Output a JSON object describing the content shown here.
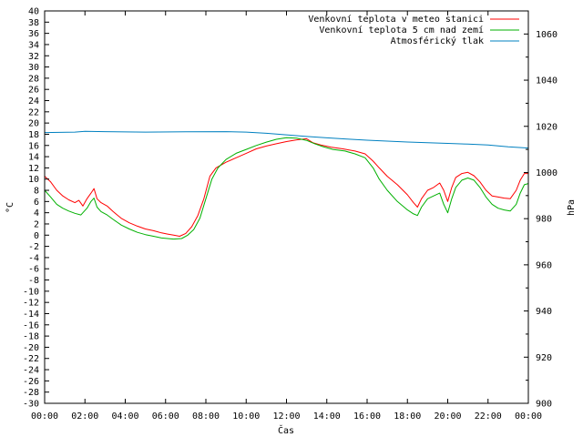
{
  "chart_data": {
    "type": "line",
    "xlabel": "Čas",
    "ylabel_left": "°C",
    "ylabel_right": "hPa",
    "ylim_left": [
      -30,
      40
    ],
    "ylim_right": [
      900,
      1070
    ],
    "xlim_hours": [
      0,
      24
    ],
    "grid": false,
    "legend_position": "top-right",
    "x_ticks": [
      "00:00",
      "02:00",
      "04:00",
      "06:00",
      "08:00",
      "10:00",
      "12:00",
      "14:00",
      "16:00",
      "18:00",
      "20:00",
      "22:00",
      "00:00"
    ],
    "y_left_ticks": [
      40,
      38,
      36,
      34,
      32,
      30,
      28,
      26,
      24,
      22,
      20,
      18,
      16,
      14,
      12,
      10,
      8,
      6,
      4,
      2,
      0,
      -2,
      -4,
      -6,
      -8,
      -10,
      -12,
      -14,
      -16,
      -18,
      -20,
      -22,
      -24,
      -26,
      -28,
      -30
    ],
    "y_right_ticks": [
      1060,
      1040,
      1020,
      1000,
      980,
      960,
      940,
      920,
      900
    ],
    "series": [
      {
        "name": "Venkovní teplota v meteo stanici",
        "color": "#ff0000",
        "axis": "left",
        "points": [
          [
            0,
            10.5
          ],
          [
            0.3,
            9.5
          ],
          [
            0.6,
            8
          ],
          [
            0.9,
            7
          ],
          [
            1.2,
            6.3
          ],
          [
            1.5,
            5.8
          ],
          [
            1.7,
            6.2
          ],
          [
            1.9,
            5.2
          ],
          [
            2.1,
            6.5
          ],
          [
            2.3,
            7.5
          ],
          [
            2.45,
            8.3
          ],
          [
            2.6,
            6.5
          ],
          [
            2.8,
            5.8
          ],
          [
            3.1,
            5.2
          ],
          [
            3.4,
            4.2
          ],
          [
            3.8,
            3
          ],
          [
            4.2,
            2.2
          ],
          [
            4.6,
            1.6
          ],
          [
            5.0,
            1.1
          ],
          [
            5.4,
            0.8
          ],
          [
            5.8,
            0.4
          ],
          [
            6.1,
            0.2
          ],
          [
            6.4,
            0
          ],
          [
            6.7,
            -0.2
          ],
          [
            7.0,
            0.3
          ],
          [
            7.3,
            1.5
          ],
          [
            7.6,
            3.5
          ],
          [
            7.9,
            6.5
          ],
          [
            8.2,
            10.5
          ],
          [
            8.5,
            12
          ],
          [
            9.0,
            13
          ],
          [
            9.5,
            13.8
          ],
          [
            10.0,
            14.6
          ],
          [
            10.5,
            15.4
          ],
          [
            11.0,
            15.9
          ],
          [
            11.5,
            16.3
          ],
          [
            12.0,
            16.7
          ],
          [
            12.5,
            17.0
          ],
          [
            13.0,
            17.2
          ],
          [
            13.3,
            16.5
          ],
          [
            13.7,
            16.1
          ],
          [
            14.2,
            15.7
          ],
          [
            14.8,
            15.4
          ],
          [
            15.4,
            15.0
          ],
          [
            15.9,
            14.5
          ],
          [
            16.3,
            13.2
          ],
          [
            16.6,
            12.0
          ],
          [
            17.0,
            10.5
          ],
          [
            17.5,
            9.0
          ],
          [
            18.0,
            7.2
          ],
          [
            18.3,
            5.8
          ],
          [
            18.5,
            5.0
          ],
          [
            18.7,
            6.5
          ],
          [
            19.0,
            8.0
          ],
          [
            19.3,
            8.5
          ],
          [
            19.6,
            9.3
          ],
          [
            19.8,
            8.0
          ],
          [
            20.0,
            6.0
          ],
          [
            20.2,
            8.5
          ],
          [
            20.4,
            10.3
          ],
          [
            20.7,
            11.0
          ],
          [
            21.0,
            11.2
          ],
          [
            21.3,
            10.6
          ],
          [
            21.6,
            9.5
          ],
          [
            21.9,
            8.0
          ],
          [
            22.2,
            7.0
          ],
          [
            22.5,
            6.8
          ],
          [
            22.8,
            6.6
          ],
          [
            23.1,
            6.5
          ],
          [
            23.4,
            8.0
          ],
          [
            23.6,
            9.8
          ],
          [
            23.8,
            11.0
          ],
          [
            24.0,
            11.0
          ]
        ]
      },
      {
        "name": "Venkovní teplota 5 cm nad zemí",
        "color": "#00b000",
        "axis": "left",
        "points": [
          [
            0,
            8.0
          ],
          [
            0.3,
            6.8
          ],
          [
            0.6,
            5.5
          ],
          [
            0.9,
            4.8
          ],
          [
            1.2,
            4.3
          ],
          [
            1.5,
            3.9
          ],
          [
            1.8,
            3.6
          ],
          [
            2.1,
            4.8
          ],
          [
            2.3,
            6.0
          ],
          [
            2.45,
            6.6
          ],
          [
            2.6,
            5.0
          ],
          [
            2.8,
            4.2
          ],
          [
            3.1,
            3.6
          ],
          [
            3.4,
            2.8
          ],
          [
            3.8,
            1.8
          ],
          [
            4.2,
            1.1
          ],
          [
            4.6,
            0.5
          ],
          [
            5.0,
            0.1
          ],
          [
            5.4,
            -0.2
          ],
          [
            5.8,
            -0.5
          ],
          [
            6.1,
            -0.6
          ],
          [
            6.4,
            -0.7
          ],
          [
            6.8,
            -0.6
          ],
          [
            7.1,
            0.0
          ],
          [
            7.4,
            1.0
          ],
          [
            7.7,
            3.0
          ],
          [
            8.0,
            6.5
          ],
          [
            8.3,
            10.0
          ],
          [
            8.6,
            12.0
          ],
          [
            9.0,
            13.5
          ],
          [
            9.5,
            14.6
          ],
          [
            10.0,
            15.3
          ],
          [
            10.5,
            16.0
          ],
          [
            11.0,
            16.6
          ],
          [
            11.5,
            17.1
          ],
          [
            12.0,
            17.4
          ],
          [
            12.5,
            17.3
          ],
          [
            13.0,
            16.9
          ],
          [
            13.4,
            16.3
          ],
          [
            13.8,
            15.8
          ],
          [
            14.3,
            15.3
          ],
          [
            14.9,
            15.0
          ],
          [
            15.4,
            14.5
          ],
          [
            15.9,
            13.8
          ],
          [
            16.3,
            12.0
          ],
          [
            16.6,
            10.0
          ],
          [
            17.0,
            8.0
          ],
          [
            17.5,
            6.0
          ],
          [
            18.0,
            4.5
          ],
          [
            18.3,
            3.8
          ],
          [
            18.5,
            3.5
          ],
          [
            18.7,
            5.0
          ],
          [
            19.0,
            6.5
          ],
          [
            19.3,
            7.0
          ],
          [
            19.6,
            7.5
          ],
          [
            19.8,
            5.5
          ],
          [
            20.0,
            4.0
          ],
          [
            20.2,
            6.5
          ],
          [
            20.4,
            8.5
          ],
          [
            20.7,
            9.8
          ],
          [
            21.0,
            10.2
          ],
          [
            21.3,
            9.8
          ],
          [
            21.6,
            8.5
          ],
          [
            21.9,
            6.8
          ],
          [
            22.2,
            5.5
          ],
          [
            22.5,
            4.8
          ],
          [
            22.8,
            4.5
          ],
          [
            23.1,
            4.3
          ],
          [
            23.4,
            5.5
          ],
          [
            23.6,
            7.5
          ],
          [
            23.8,
            9.0
          ],
          [
            24.0,
            9.2
          ]
        ]
      },
      {
        "name": "Atmosférický tlak",
        "color": "#0080c0",
        "axis": "right",
        "points": [
          [
            0,
            1017.3
          ],
          [
            1.5,
            1017.5
          ],
          [
            2.0,
            1017.8
          ],
          [
            3.0,
            1017.7
          ],
          [
            5.0,
            1017.5
          ],
          [
            7.0,
            1017.6
          ],
          [
            9.0,
            1017.7
          ],
          [
            10.0,
            1017.5
          ],
          [
            11.0,
            1017.0
          ],
          [
            12.0,
            1016.3
          ],
          [
            13.0,
            1015.6
          ],
          [
            14.0,
            1015.0
          ],
          [
            15.0,
            1014.5
          ],
          [
            16.0,
            1014.0
          ],
          [
            17.0,
            1013.6
          ],
          [
            18.0,
            1013.2
          ],
          [
            19.0,
            1012.9
          ],
          [
            20.0,
            1012.6
          ],
          [
            21.0,
            1012.3
          ],
          [
            22.0,
            1011.9
          ],
          [
            23.0,
            1011.1
          ],
          [
            24.0,
            1010.6
          ]
        ]
      }
    ]
  }
}
